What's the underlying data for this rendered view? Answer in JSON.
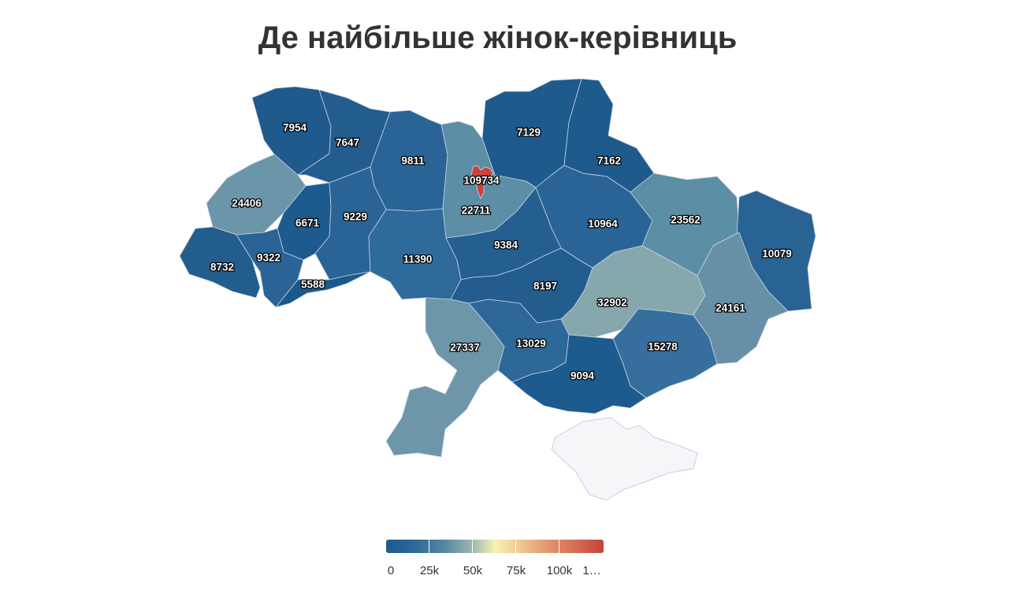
{
  "title": "Де найбільше жінок-керівниць",
  "colors": {
    "low": "#1c5a8e",
    "mid": "#f8f2b6",
    "high": "#c8423b",
    "no_data": "#f6f6f9"
  },
  "legend": {
    "ticks": [
      "0",
      "25k",
      "50k",
      "75k",
      "100k",
      "1…"
    ]
  },
  "regions": [
    {
      "value": "7954"
    },
    {
      "value": "7647"
    },
    {
      "value": "9811"
    },
    {
      "value": "109734"
    },
    {
      "value": "22711"
    },
    {
      "value": "7129"
    },
    {
      "value": "7162"
    },
    {
      "value": "24406"
    },
    {
      "value": "6671"
    },
    {
      "value": "9229"
    },
    {
      "value": "10964"
    },
    {
      "value": "23562"
    },
    {
      "value": "10079"
    },
    {
      "value": "8732"
    },
    {
      "value": "9322"
    },
    {
      "value": "11390"
    },
    {
      "value": "9384"
    },
    {
      "value": "5588"
    },
    {
      "value": "8197"
    },
    {
      "value": "32902"
    },
    {
      "value": "24161"
    },
    {
      "value": "27337"
    },
    {
      "value": "13029"
    },
    {
      "value": "15278"
    },
    {
      "value": "9094"
    }
  ]
}
